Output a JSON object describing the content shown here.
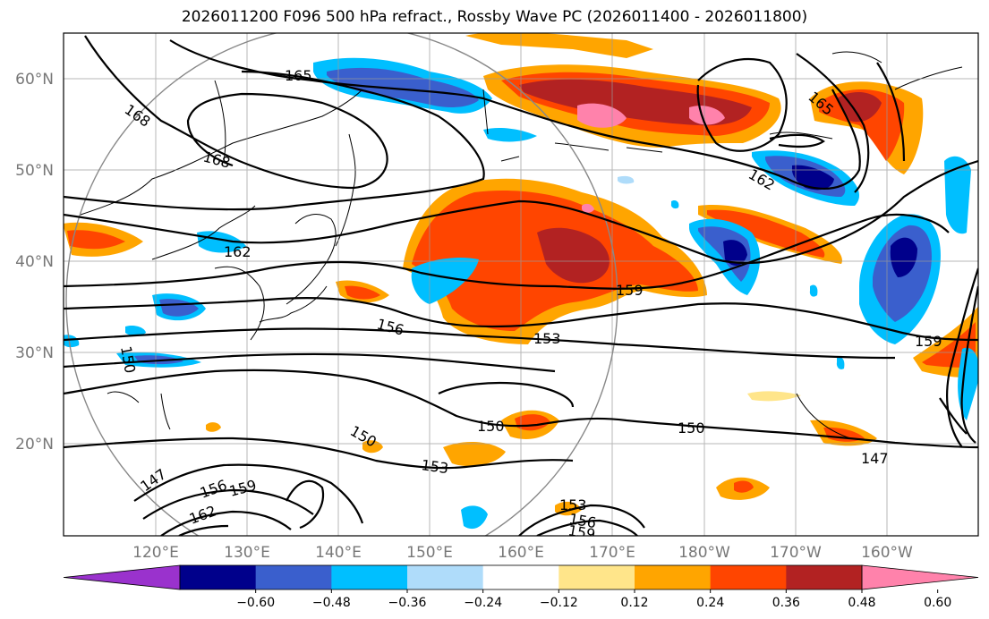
{
  "title": "2026011200 F096 500 hPa refract., Rossby Wave PC (2026011400 - 2026011800)",
  "lat_labels": [
    "60°N",
    "50°N",
    "40°N",
    "30°N",
    "20°N"
  ],
  "lon_labels": [
    "120°E",
    "130°E",
    "140°E",
    "150°E",
    "160°E",
    "170°E",
    "180°W",
    "170°W",
    "160°W"
  ],
  "contour_labels": [
    "165",
    "168",
    "168",
    "162",
    "162",
    "165",
    "159",
    "156",
    "153",
    "150",
    "150",
    "150",
    "150",
    "159",
    "147",
    "147",
    "156",
    "159",
    "162",
    "153",
    "156",
    "159",
    "153"
  ],
  "colorbar": {
    "ticks": [
      "−0.60",
      "−0.48",
      "−0.36",
      "−0.24",
      "−0.12",
      "0.12",
      "0.24",
      "0.36",
      "0.48",
      "0.60"
    ],
    "colors": [
      "#9a32cd",
      "#00008b",
      "#3a5fcd",
      "#00bfff",
      "#afdcfa",
      "#ffffff",
      "#ffe58a",
      "#ffa500",
      "#ff4500",
      "#b22222",
      "#ff82ab"
    ]
  },
  "palette": {
    "neg_strong": "#00008b",
    "neg_mid": "#3a5fcd",
    "neg": "#00bfff",
    "neg_weak": "#afdcfa",
    "pos_weak": "#ffe58a",
    "pos": "#ffa500",
    "pos_mid": "#ff4500",
    "pos_strong": "#b22222",
    "pos_max": "#ff82ab"
  }
}
